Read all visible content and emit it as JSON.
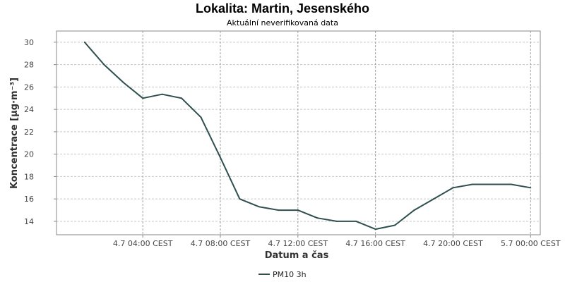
{
  "chart_data": {
    "type": "line",
    "title": "Lokalita: Martin, Jesenského",
    "subtitle": "Aktuální neverifikovaná data",
    "xlabel": "Datum a čas",
    "ylabel": "Koncentrace [µg·m⁻³]",
    "ylim": [
      12.8,
      31.0
    ],
    "yticks": [
      14,
      16,
      18,
      20,
      22,
      24,
      26,
      28,
      30
    ],
    "x_tick_values": [
      4,
      8,
      12,
      16,
      20,
      24
    ],
    "x_tick_labels": [
      "4.7 04:00 CEST",
      "4.7 08:00 CEST",
      "4.7 12:00 CEST",
      "4.7 16:00 CEST",
      "4.7 20:00 CEST",
      "5.7 00:00 CEST"
    ],
    "xlim": [
      -0.45,
      24.5
    ],
    "grid": true,
    "legend_position": "bottom-center",
    "series": [
      {
        "name": "PM10 3h",
        "color": "#2f4f4f",
        "x": [
          1,
          2,
          3,
          4,
          5,
          6,
          7,
          8,
          9,
          10,
          11,
          12,
          13,
          14,
          15,
          16,
          17,
          18,
          19,
          20,
          21,
          22,
          23,
          24
        ],
        "values": [
          30.0,
          28.0,
          26.4,
          25.0,
          25.35,
          25.0,
          23.3,
          19.7,
          16.0,
          15.3,
          15.0,
          15.0,
          14.3,
          14.0,
          14.0,
          13.3,
          13.65,
          15.0,
          16.0,
          17.0,
          17.3,
          17.3,
          17.3,
          17.0
        ]
      }
    ]
  }
}
